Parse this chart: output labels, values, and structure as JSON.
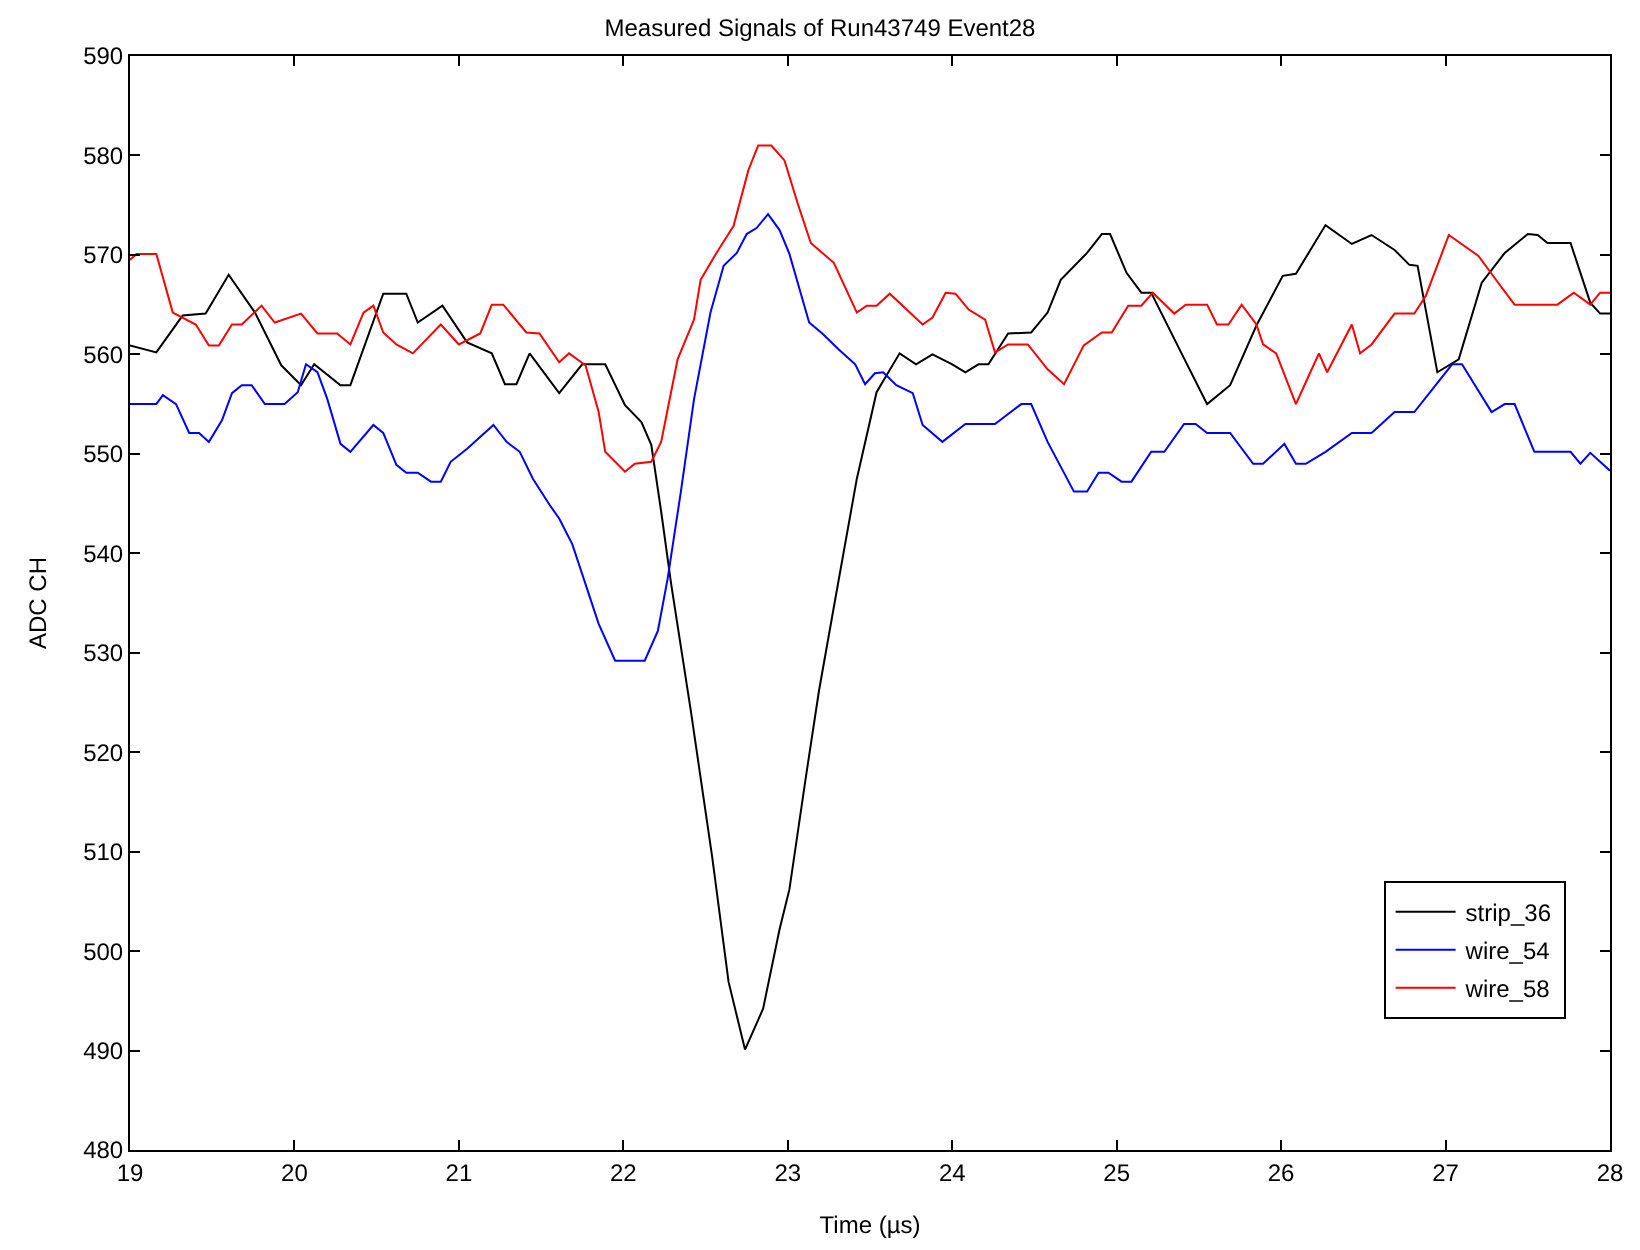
{
  "chart_data": {
    "type": "line",
    "title": "Measured Signals of Run43749 Event28",
    "xlabel": "Time (µs)",
    "ylabel": "ADC CH",
    "xlim": [
      19,
      28
    ],
    "ylim": [
      480,
      590
    ],
    "xticks": [
      19,
      20,
      21,
      22,
      23,
      24,
      25,
      26,
      27,
      28
    ],
    "yticks": [
      480,
      490,
      500,
      510,
      520,
      530,
      540,
      550,
      560,
      570,
      580,
      590
    ],
    "legend": "bottom right",
    "marker": "none",
    "line_style": "solid",
    "series": [
      {
        "name": "strip_36",
        "color": "#000000",
        "x": [
          19.0,
          19.16,
          19.32,
          19.46,
          19.6,
          19.76,
          19.92,
          20.04,
          20.12,
          20.28,
          20.34,
          20.54,
          20.68,
          20.75,
          20.9,
          21.05,
          21.2,
          21.28,
          21.35,
          21.43,
          21.61,
          21.75,
          21.89,
          22.01,
          22.11,
          22.17,
          22.23,
          22.29,
          22.41,
          22.54,
          22.64,
          22.74,
          22.85,
          22.95,
          23.01,
          23.11,
          23.19,
          23.29,
          23.42,
          23.54,
          23.68,
          23.78,
          23.88,
          24.0,
          24.08,
          24.16,
          24.22,
          24.34,
          24.48,
          24.58,
          24.66,
          24.82,
          24.91,
          24.96,
          25.06,
          25.15,
          25.21,
          25.37,
          25.55,
          25.69,
          25.85,
          26.01,
          26.09,
          26.27,
          26.43,
          26.55,
          26.69,
          26.78,
          26.83,
          26.95,
          27.08,
          27.22,
          27.36,
          27.5,
          27.56,
          27.62,
          27.76,
          27.88,
          27.94,
          28.0
        ],
        "values": [
          560.9,
          560.2,
          563.9,
          564.1,
          568,
          564.2,
          558.9,
          556.9,
          559,
          556.9,
          556.9,
          566.1,
          566.1,
          563.2,
          564.9,
          561.2,
          560.1,
          557,
          557,
          560.1,
          556.1,
          559,
          559,
          554.9,
          553.2,
          550.9,
          544.2,
          537,
          524.2,
          509.5,
          496.9,
          490.1,
          494.2,
          502.2,
          506.2,
          517.5,
          526.2,
          535.5,
          547.5,
          556.2,
          560.1,
          559,
          560,
          559,
          558.2,
          559,
          559,
          562.1,
          562.2,
          564.2,
          567.5,
          570.2,
          572.1,
          572.1,
          568.2,
          566.2,
          566.2,
          560.9,
          555,
          556.9,
          562.9,
          567.9,
          568.1,
          573,
          571.1,
          572,
          570.5,
          569,
          568.9,
          558.2,
          559.5,
          567.2,
          570.2,
          572.1,
          572,
          571.2,
          571.2,
          565.2,
          564.1,
          564.1
        ]
      },
      {
        "name": "wire_54",
        "color": "#0000ff",
        "x": [
          19.0,
          19.16,
          19.2,
          19.28,
          19.36,
          19.42,
          19.48,
          19.56,
          19.62,
          19.68,
          19.74,
          19.82,
          19.94,
          20.02,
          20.07,
          20.14,
          20.2,
          20.28,
          20.34,
          20.48,
          20.54,
          20.62,
          20.68,
          20.75,
          20.83,
          20.89,
          20.95,
          21.05,
          21.21,
          21.29,
          21.37,
          21.45,
          21.55,
          21.61,
          21.69,
          21.77,
          21.85,
          21.95,
          22.13,
          22.21,
          22.27,
          22.35,
          22.43,
          22.53,
          22.61,
          22.69,
          22.75,
          22.81,
          22.88,
          22.95,
          23.01,
          23.13,
          23.21,
          23.31,
          23.41,
          23.47,
          23.53,
          23.58,
          23.66,
          23.76,
          23.82,
          23.94,
          24.08,
          24.26,
          24.42,
          24.48,
          24.58,
          24.74,
          24.82,
          24.89,
          24.95,
          25.03,
          25.09,
          25.21,
          25.29,
          25.41,
          25.48,
          25.55,
          25.69,
          25.83,
          25.89,
          26.02,
          26.09,
          26.15,
          26.27,
          26.43,
          26.55,
          26.69,
          26.81,
          26.94,
          27.04,
          27.1,
          27.28,
          27.36,
          27.42,
          27.54,
          27.76,
          27.82,
          27.88,
          27.94,
          28.0
        ],
        "values": [
          555,
          555,
          555.9,
          555,
          552.1,
          552.1,
          551.2,
          553.4,
          556.1,
          556.9,
          556.9,
          555,
          555,
          556.2,
          559,
          558.2,
          555.5,
          551,
          550.2,
          552.9,
          552.1,
          548.9,
          548.1,
          548.1,
          547.2,
          547.2,
          549.2,
          550.5,
          552.9,
          551.2,
          550.2,
          547.5,
          544.9,
          543.5,
          540.9,
          536.9,
          532.9,
          529.2,
          529.2,
          532.2,
          537.5,
          546.2,
          555.5,
          564.2,
          568.9,
          570.2,
          572.1,
          572.7,
          574.1,
          572.5,
          570.1,
          563.2,
          562.1,
          560.5,
          559,
          557,
          558.1,
          558.2,
          556.9,
          556.1,
          552.9,
          551.2,
          553,
          553,
          555,
          555,
          551.2,
          546.2,
          546.2,
          548.1,
          548.1,
          547.2,
          547.2,
          550.2,
          550.2,
          553,
          553,
          552.1,
          552.1,
          549,
          549,
          551,
          549,
          549,
          550.2,
          552.1,
          552.1,
          554.2,
          554.2,
          556.9,
          559,
          559,
          554.2,
          555,
          555,
          550.2,
          550.2,
          549,
          550.1,
          549.2,
          548.3
        ]
      },
      {
        "name": "wire_58",
        "color": "#ff0000",
        "x": [
          19.0,
          19.04,
          19.16,
          19.26,
          19.4,
          19.48,
          19.54,
          19.62,
          19.68,
          19.8,
          19.88,
          20.04,
          20.14,
          20.26,
          20.34,
          20.42,
          20.48,
          20.54,
          20.62,
          20.72,
          20.89,
          21.0,
          21.13,
          21.2,
          21.27,
          21.41,
          21.49,
          21.61,
          21.67,
          21.77,
          21.85,
          21.89,
          22.01,
          22.07,
          22.17,
          22.23,
          22.33,
          22.43,
          22.47,
          22.57,
          22.67,
          22.76,
          22.82,
          22.9,
          22.98,
          23.06,
          23.14,
          23.28,
          23.42,
          23.48,
          23.54,
          23.62,
          23.82,
          23.88,
          23.96,
          24.02,
          24.1,
          24.2,
          24.26,
          24.34,
          24.46,
          24.58,
          24.68,
          24.8,
          24.91,
          24.97,
          25.07,
          25.15,
          25.22,
          25.35,
          25.42,
          25.55,
          25.61,
          25.68,
          25.76,
          25.85,
          25.89,
          25.97,
          26.09,
          26.15,
          26.23,
          26.28,
          26.43,
          26.48,
          26.55,
          26.69,
          26.81,
          26.88,
          27.02,
          27.2,
          27.32,
          27.42,
          27.68,
          27.78,
          27.88,
          27.94,
          28.0
        ],
        "values": [
          569.5,
          570.1,
          570.1,
          564.2,
          563,
          560.9,
          560.9,
          563,
          563,
          564.9,
          563.2,
          564.1,
          562.1,
          562.1,
          561,
          564.2,
          564.9,
          562.2,
          561,
          560.1,
          563,
          561,
          562.1,
          565,
          565,
          562.2,
          562.1,
          559.2,
          560.1,
          558.9,
          554.2,
          550.2,
          548.2,
          549,
          549.2,
          551.2,
          559.5,
          563.5,
          567.5,
          570.3,
          572.9,
          578.5,
          581,
          581,
          579.5,
          575.2,
          571.2,
          569.2,
          564.2,
          564.9,
          564.9,
          566.1,
          563,
          563.7,
          566.2,
          566.1,
          564.5,
          563.5,
          560.2,
          561,
          561,
          558.5,
          557,
          560.9,
          562.2,
          562.2,
          564.9,
          564.9,
          566.2,
          564.1,
          565,
          565,
          563,
          563,
          565,
          563,
          561,
          560.1,
          555,
          557.2,
          560.1,
          558.2,
          563,
          560.1,
          561,
          564.1,
          564.1,
          565.9,
          572,
          569.9,
          567.2,
          565,
          565,
          566.2,
          565,
          566.2,
          566.2
        ]
      }
    ]
  }
}
